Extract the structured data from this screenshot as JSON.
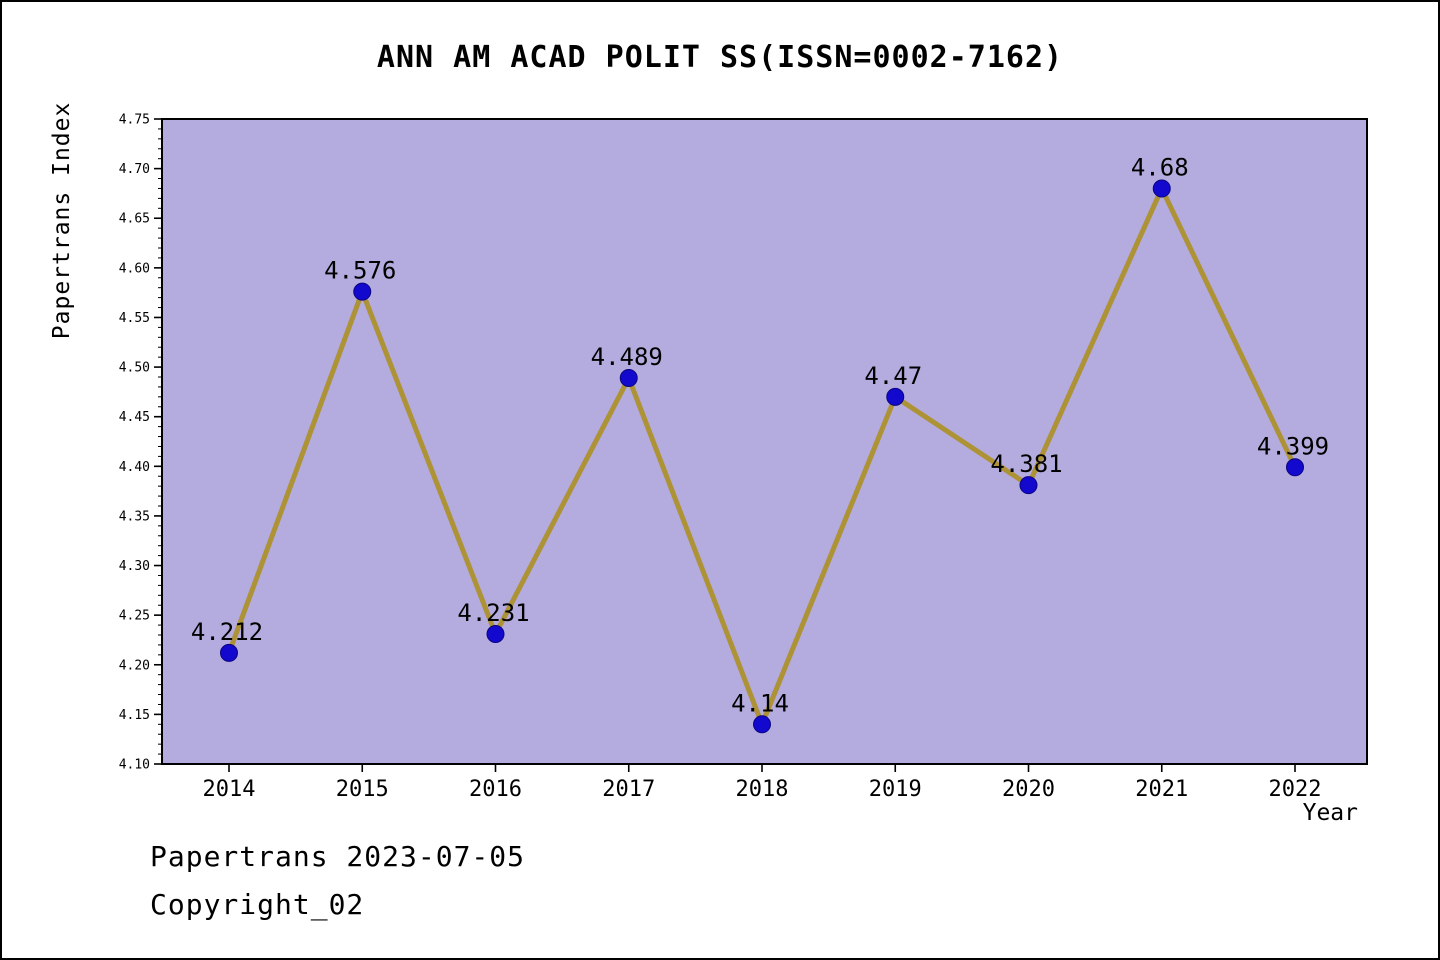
{
  "title": "ANN AM ACAD POLIT SS(ISSN=0002-7162)",
  "footer": {
    "line1": "Papertrans 2023-07-05",
    "line2": "Copyright_02"
  },
  "chart_data": {
    "type": "line",
    "x": [
      2014,
      2015,
      2016,
      2017,
      2018,
      2019,
      2020,
      2021,
      2022
    ],
    "values": [
      4.212,
      4.576,
      4.231,
      4.489,
      4.14,
      4.47,
      4.381,
      4.68,
      4.399
    ],
    "point_labels": [
      "4.212",
      "4.576",
      "4.231",
      "4.489",
      "4.14",
      "4.47",
      "4.381",
      "4.68",
      "4.399"
    ],
    "title": "ANN AM ACAD POLIT SS(ISSN=0002-7162)",
    "xlabel": "Year",
    "ylabel": "Papertrans Index",
    "ylim": [
      4.1,
      4.75
    ],
    "ytick_step": 0.05,
    "ytick_minor_step": 0.01,
    "grid": false,
    "legend": "none",
    "colors": {
      "plot_bg": "#b4abde",
      "line": "#ad9336",
      "marker": "#1208ce",
      "axis": "#000000",
      "text": "#000000"
    }
  }
}
